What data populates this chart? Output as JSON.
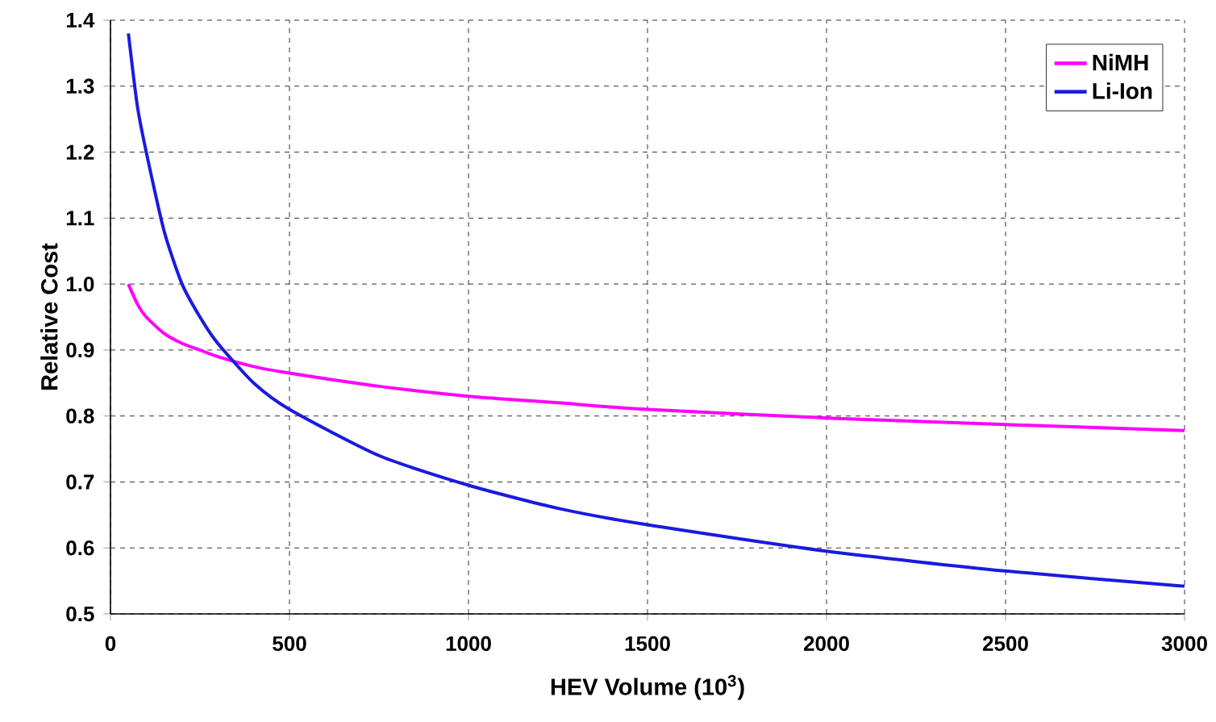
{
  "chart_data": {
    "type": "line",
    "xlabel": "HEV Volume (10$^{3}$)",
    "ylabel": "Relative Cost",
    "x": [
      50,
      75,
      100,
      150,
      200,
      250,
      300,
      400,
      500,
      750,
      1000,
      1250,
      1500,
      2000,
      2500,
      3000
    ],
    "series": [
      {
        "name": "NiMH",
        "color": "#ff00ff",
        "values": [
          1.0,
          0.97,
          0.95,
          0.925,
          0.91,
          0.9,
          0.89,
          0.875,
          0.865,
          0.845,
          0.83,
          0.82,
          0.81,
          0.797,
          0.787,
          0.778
        ]
      },
      {
        "name": "Li-Ion",
        "color": "#1a1ae0",
        "values": [
          1.38,
          1.27,
          1.2,
          1.08,
          1.0,
          0.95,
          0.91,
          0.85,
          0.81,
          0.74,
          0.695,
          0.66,
          0.635,
          0.595,
          0.565,
          0.542
        ]
      }
    ],
    "xlim": [
      0,
      3000
    ],
    "ylim": [
      0.5,
      1.4
    ],
    "xticks": [
      0,
      500,
      1000,
      1500,
      2000,
      2500,
      3000
    ],
    "yticks": [
      0.5,
      0.6,
      0.7,
      0.8,
      0.9,
      {
        "value": 1.0,
        "label": "1.0"
      },
      1.1,
      1.2,
      1.3,
      1.4
    ],
    "grid": true,
    "legend": "top right",
    "line_style": "solid",
    "marker": "none"
  }
}
